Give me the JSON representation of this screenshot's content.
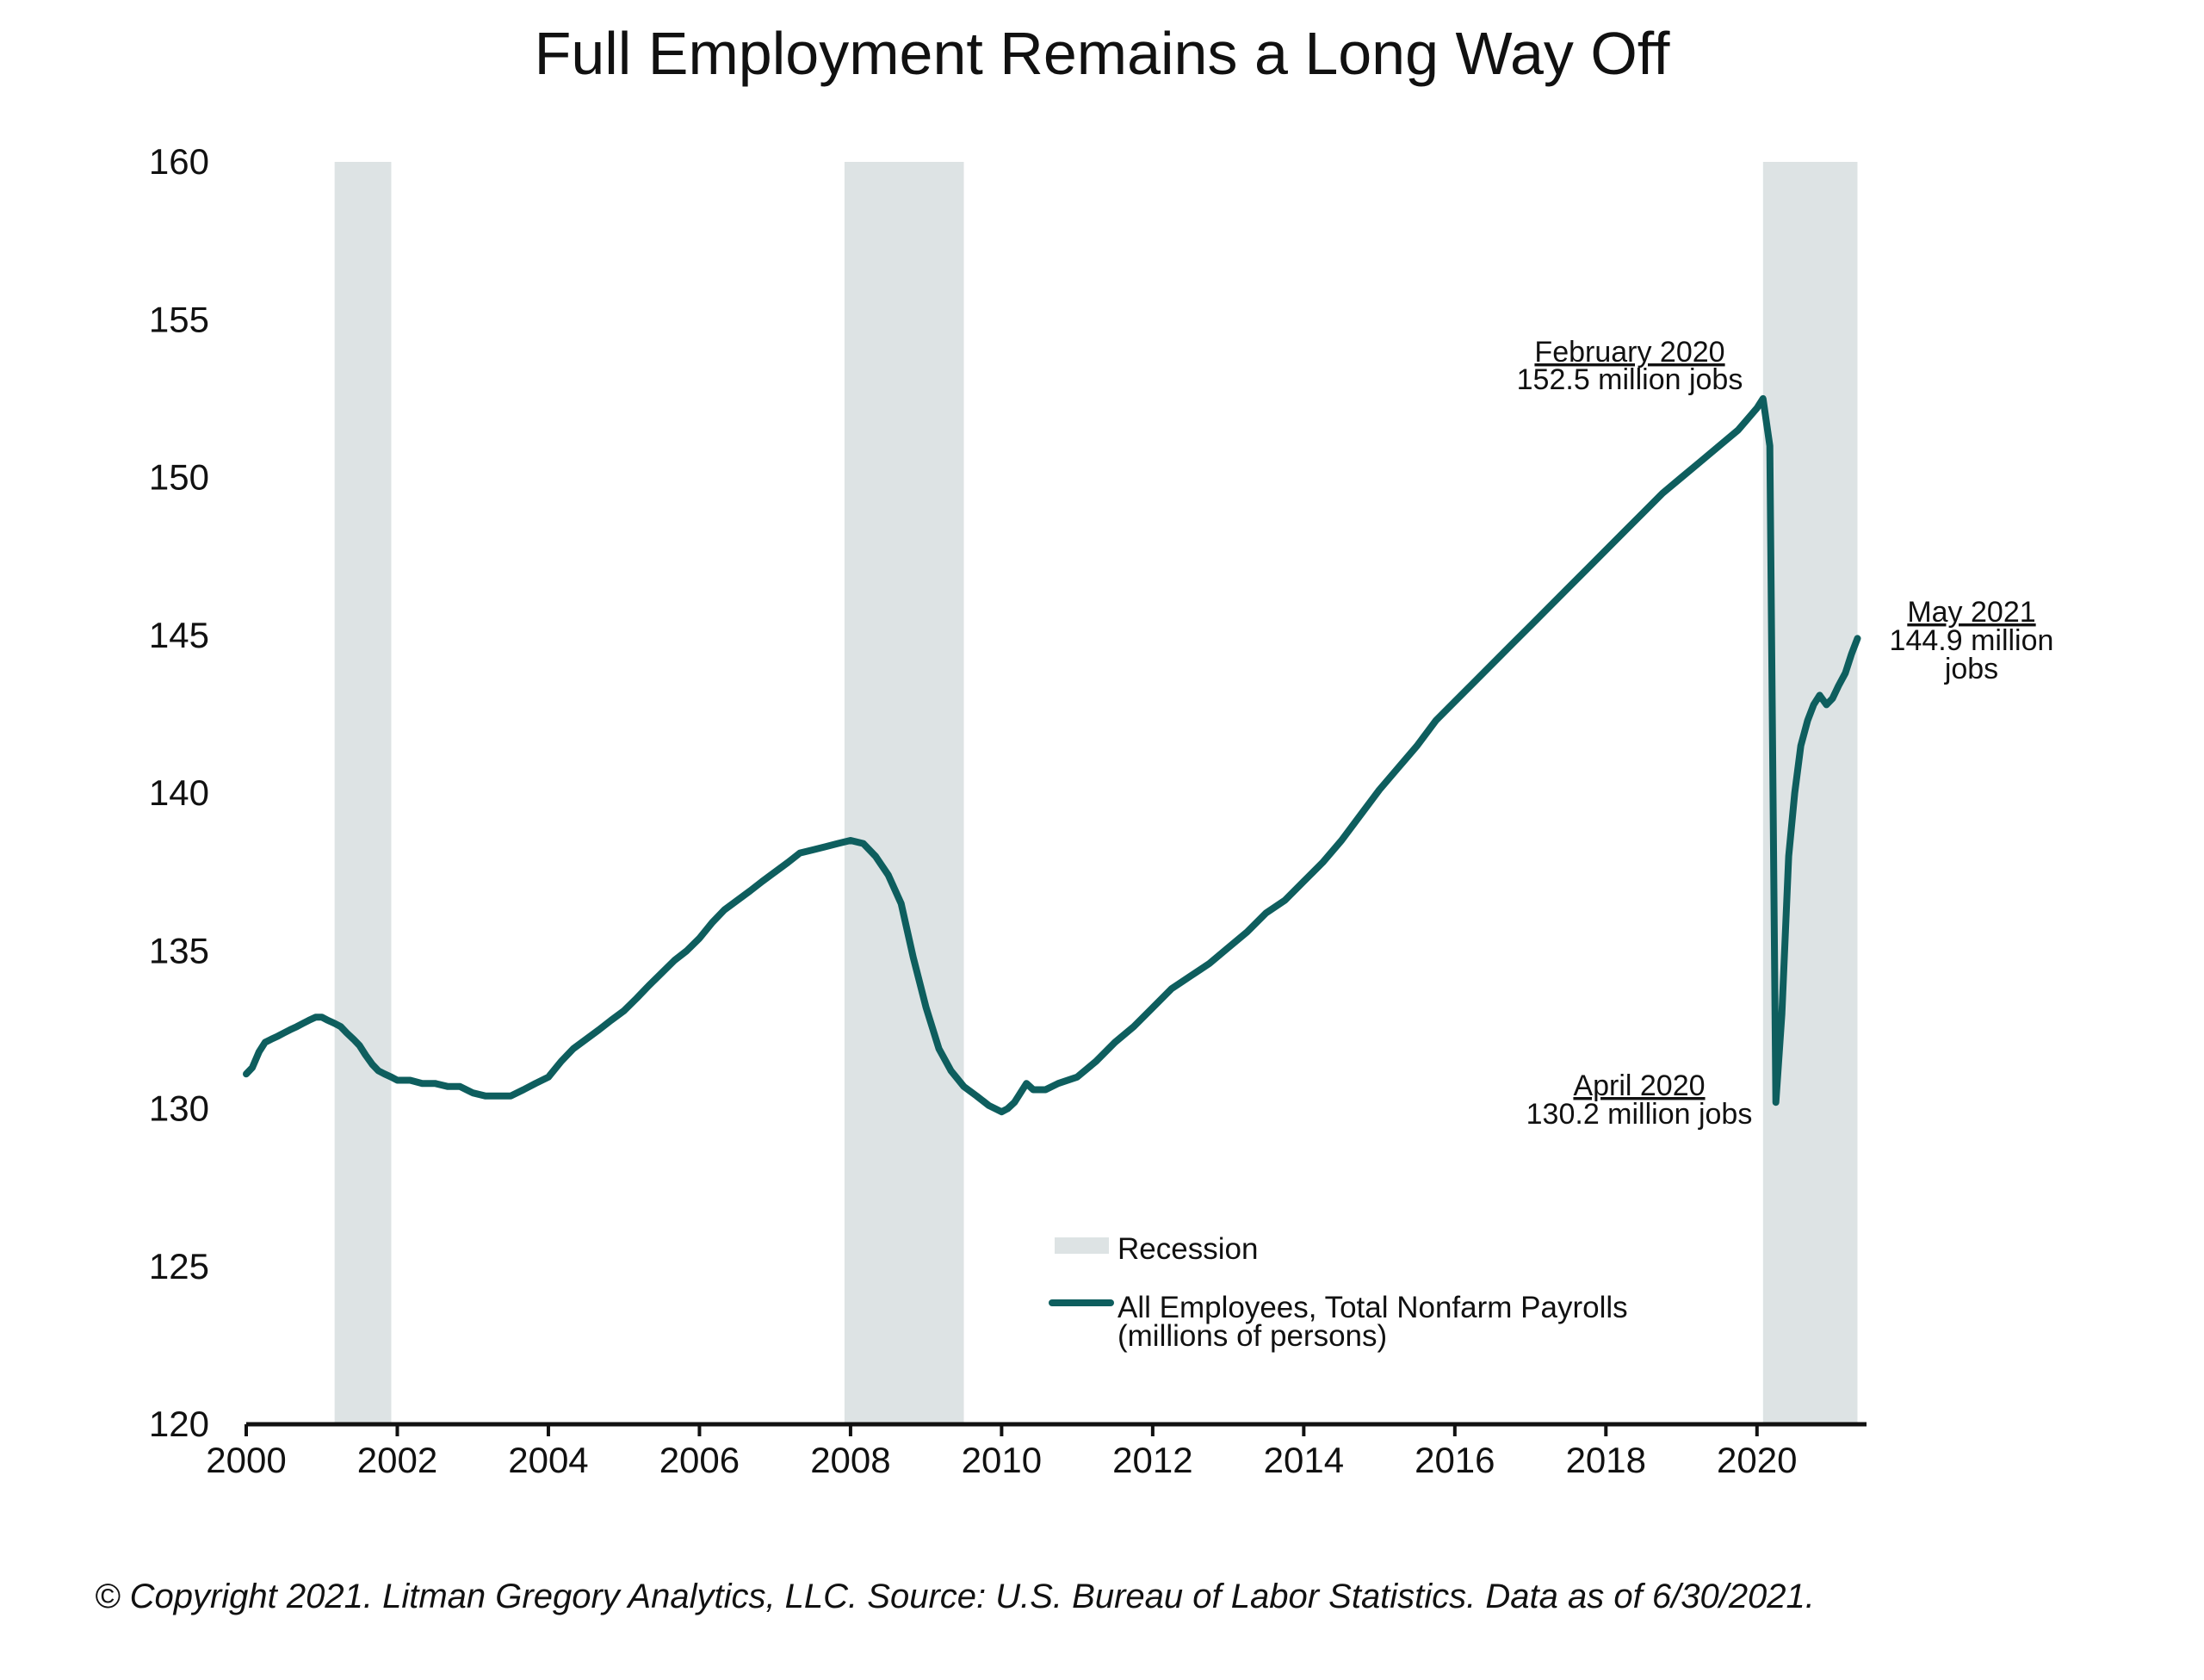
{
  "title": "Full Employment Remains a Long Way Off",
  "footer": "© Copyright 2021. Litman Gregory Analytics, LLC. Source: U.S. Bureau of Labor Statistics. Data as of 6/30/2021.",
  "colors": {
    "line": "#0e5e5e",
    "recession": "#dde3e4",
    "axis": "#111111"
  },
  "chart_data": {
    "type": "line",
    "title": "Full Employment Remains a Long Way Off",
    "xlabel": "",
    "ylabel": "",
    "xlim": [
      2000,
      2021.45
    ],
    "ylim": [
      120,
      160
    ],
    "xticks": [
      "2000",
      "2002",
      "2004",
      "2006",
      "2008",
      "2010",
      "2012",
      "2014",
      "2016",
      "2018",
      "2020"
    ],
    "yticks": [
      "160",
      "155",
      "150",
      "145",
      "140",
      "135",
      "130",
      "125",
      "120"
    ],
    "grid": false,
    "legend_position": "bottom-center",
    "recessions": [
      {
        "start": 2001.17,
        "end": 2001.92
      },
      {
        "start": 2007.92,
        "end": 2009.5
      },
      {
        "start": 2020.08,
        "end": 2021.33
      }
    ],
    "series": [
      {
        "name": "All Employees, Total Nonfarm Payrolls",
        "name_line2": "(millions of persons)",
        "x": [
          2000.0,
          2000.08,
          2000.17,
          2000.25,
          2000.33,
          2000.42,
          2000.5,
          2000.58,
          2000.67,
          2000.75,
          2000.83,
          2000.92,
          2001.0,
          2001.08,
          2001.17,
          2001.25,
          2001.33,
          2001.42,
          2001.5,
          2001.58,
          2001.67,
          2001.75,
          2001.83,
          2001.92,
          2002.0,
          2002.17,
          2002.33,
          2002.5,
          2002.67,
          2002.83,
          2003.0,
          2003.17,
          2003.33,
          2003.5,
          2003.67,
          2003.83,
          2004.0,
          2004.17,
          2004.33,
          2004.5,
          2004.67,
          2004.83,
          2005.0,
          2005.17,
          2005.33,
          2005.5,
          2005.67,
          2005.83,
          2006.0,
          2006.17,
          2006.33,
          2006.5,
          2006.67,
          2006.83,
          2007.0,
          2007.17,
          2007.33,
          2007.5,
          2007.67,
          2007.83,
          2008.0,
          2008.17,
          2008.33,
          2008.5,
          2008.67,
          2008.83,
          2009.0,
          2009.17,
          2009.33,
          2009.5,
          2009.67,
          2009.83,
          2010.0,
          2010.08,
          2010.17,
          2010.25,
          2010.33,
          2010.42,
          2010.58,
          2010.75,
          2011.0,
          2011.25,
          2011.5,
          2011.75,
          2012.0,
          2012.25,
          2012.5,
          2012.75,
          2013.0,
          2013.25,
          2013.5,
          2013.75,
          2014.0,
          2014.25,
          2014.5,
          2014.75,
          2015.0,
          2015.25,
          2015.5,
          2015.75,
          2016.0,
          2016.25,
          2016.5,
          2016.75,
          2017.0,
          2017.25,
          2017.5,
          2017.75,
          2018.0,
          2018.25,
          2018.5,
          2018.75,
          2019.0,
          2019.25,
          2019.5,
          2019.75,
          2020.0,
          2020.08,
          2020.17,
          2020.25,
          2020.33,
          2020.42,
          2020.5,
          2020.58,
          2020.67,
          2020.75,
          2020.83,
          2020.92,
          2021.0,
          2021.08,
          2021.17,
          2021.25,
          2021.33
        ],
        "values": [
          131.1,
          131.3,
          131.8,
          132.1,
          132.2,
          132.3,
          132.4,
          132.5,
          132.6,
          132.7,
          132.8,
          132.9,
          132.9,
          132.8,
          132.7,
          132.6,
          132.4,
          132.2,
          132.0,
          131.7,
          131.4,
          131.2,
          131.1,
          131.0,
          130.9,
          130.9,
          130.8,
          130.8,
          130.7,
          130.7,
          130.5,
          130.4,
          130.4,
          130.4,
          130.6,
          130.8,
          131.0,
          131.5,
          131.9,
          132.2,
          132.5,
          132.8,
          133.1,
          133.5,
          133.9,
          134.3,
          134.7,
          135.0,
          135.4,
          135.9,
          136.3,
          136.6,
          136.9,
          137.2,
          137.5,
          137.8,
          138.1,
          138.2,
          138.3,
          138.4,
          138.5,
          138.4,
          138.0,
          137.4,
          136.5,
          134.8,
          133.2,
          131.9,
          131.2,
          130.7,
          130.4,
          130.1,
          129.9,
          130.0,
          130.2,
          130.5,
          130.8,
          130.6,
          130.6,
          130.8,
          131.0,
          131.5,
          132.1,
          132.6,
          133.2,
          133.8,
          134.2,
          134.6,
          135.1,
          135.6,
          136.2,
          136.6,
          137.2,
          137.8,
          138.5,
          139.3,
          140.1,
          140.8,
          141.5,
          142.3,
          142.9,
          143.5,
          144.1,
          144.7,
          145.3,
          145.9,
          146.5,
          147.1,
          147.7,
          148.3,
          148.9,
          149.5,
          150.0,
          150.5,
          151.0,
          151.5,
          152.2,
          152.5,
          151.0,
          130.2,
          133.0,
          138.0,
          140.0,
          141.5,
          142.3,
          142.8,
          143.1,
          142.8,
          143.0,
          143.4,
          143.8,
          144.4,
          144.9
        ]
      }
    ],
    "legend": {
      "recession_label": "Recession",
      "line_label_1": "All Employees, Total Nonfarm Payrolls",
      "line_label_2": "(millions of persons)"
    },
    "annotations": [
      {
        "line1": "February 2020",
        "line2": "152.5 million jobs",
        "line3": ""
      },
      {
        "line1": "April 2020",
        "line2": "130.2 million jobs",
        "line3": ""
      },
      {
        "line1": "May 2021",
        "line2": "144.9 million",
        "line3": "jobs"
      }
    ]
  }
}
